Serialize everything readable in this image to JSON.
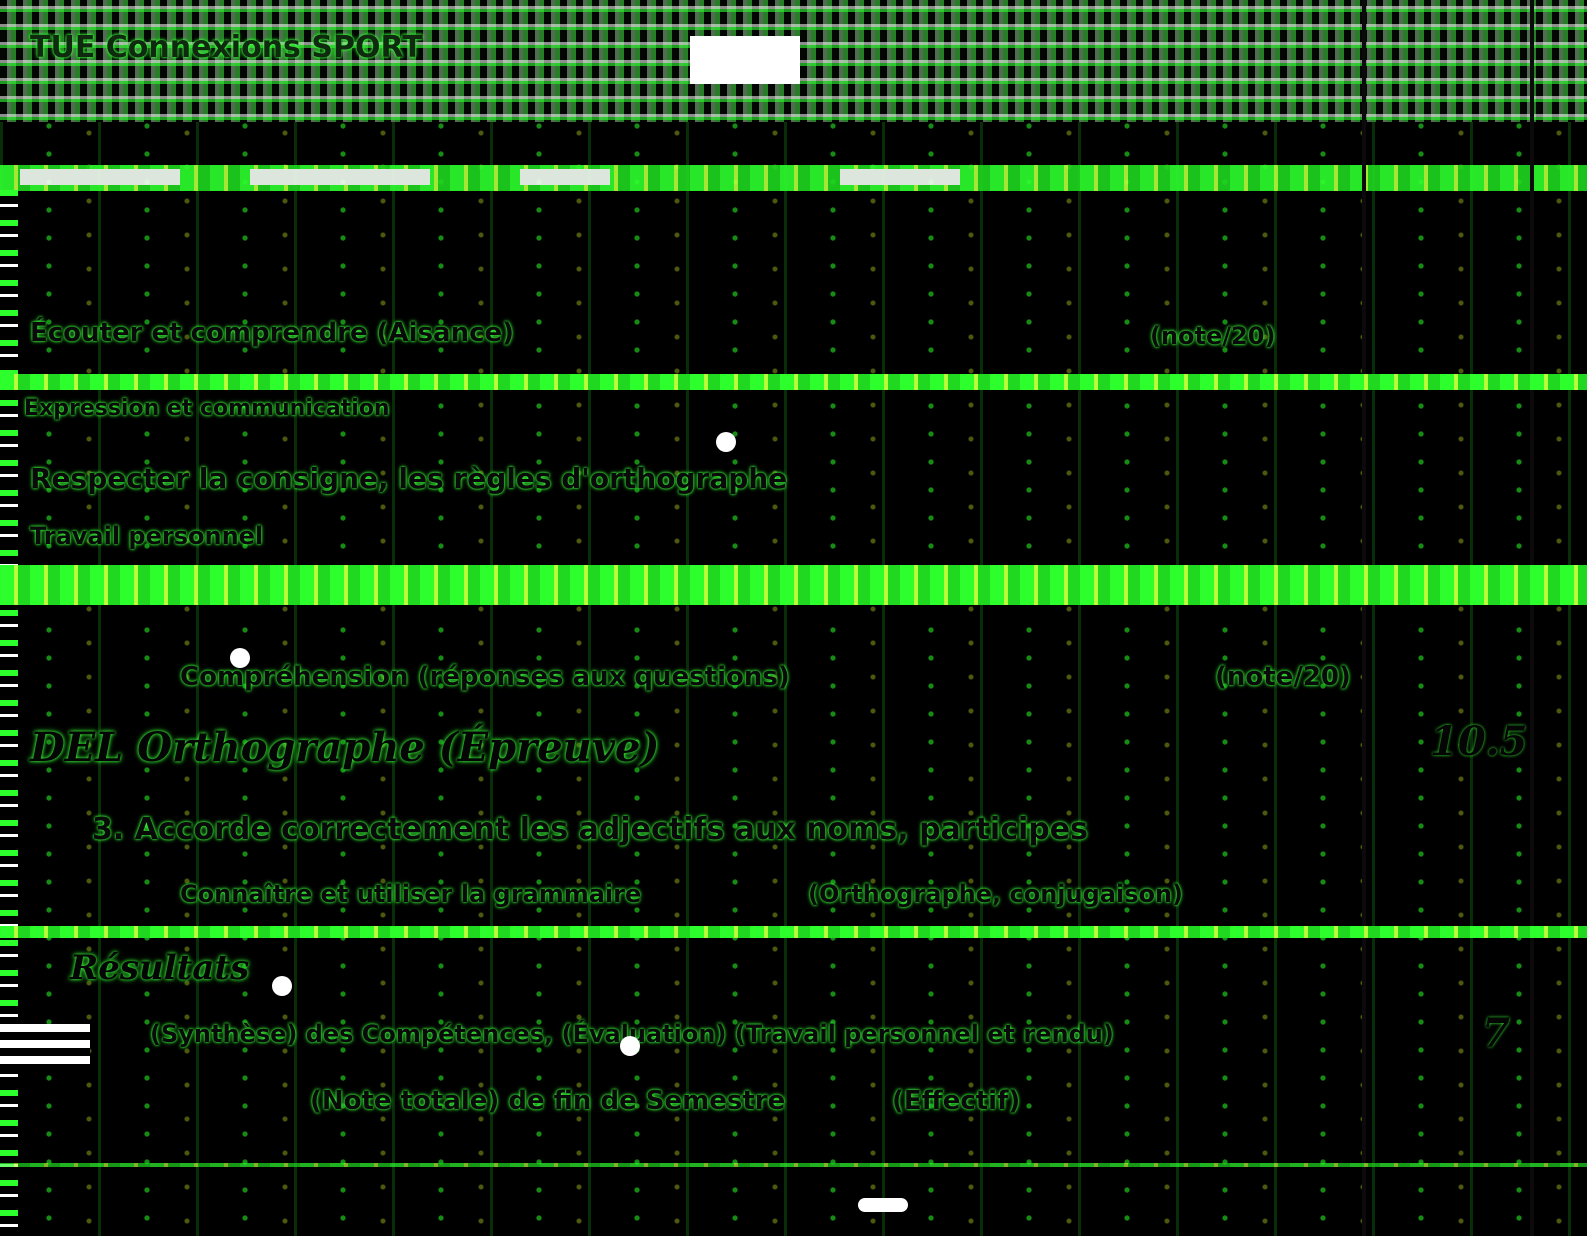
{
  "header": {
    "title": "TUE Connexions SPORT"
  },
  "rows": [
    {
      "text": "Écouter et comprendre (Aisance)",
      "score": "(note/20)"
    },
    {
      "text": "Expression et communication"
    },
    {
      "text": "Respecter la consigne, les règles d'orthographe"
    },
    {
      "text": "Travail personnel"
    },
    {
      "text": "Compréhension (réponses aux questions)",
      "score": "(note/20)"
    }
  ],
  "section": {
    "title": "DEL Orthographe (Épreuve)",
    "score": "10.5"
  },
  "items": [
    {
      "text": "3. Accorde correctement les adjectifs aux noms, participes"
    },
    {
      "text": "Connaître et utiliser la grammaire",
      "note": "(Orthographe, conjugaison)"
    }
  ],
  "footer": {
    "title": "Résultats",
    "text": "(Synthèse) des Compétences, (Évaluation) (Travail personnel et rendu)",
    "subtext": "(Note totale) de fin de Semestre",
    "subnote": "(Effectif)",
    "score": "7"
  }
}
